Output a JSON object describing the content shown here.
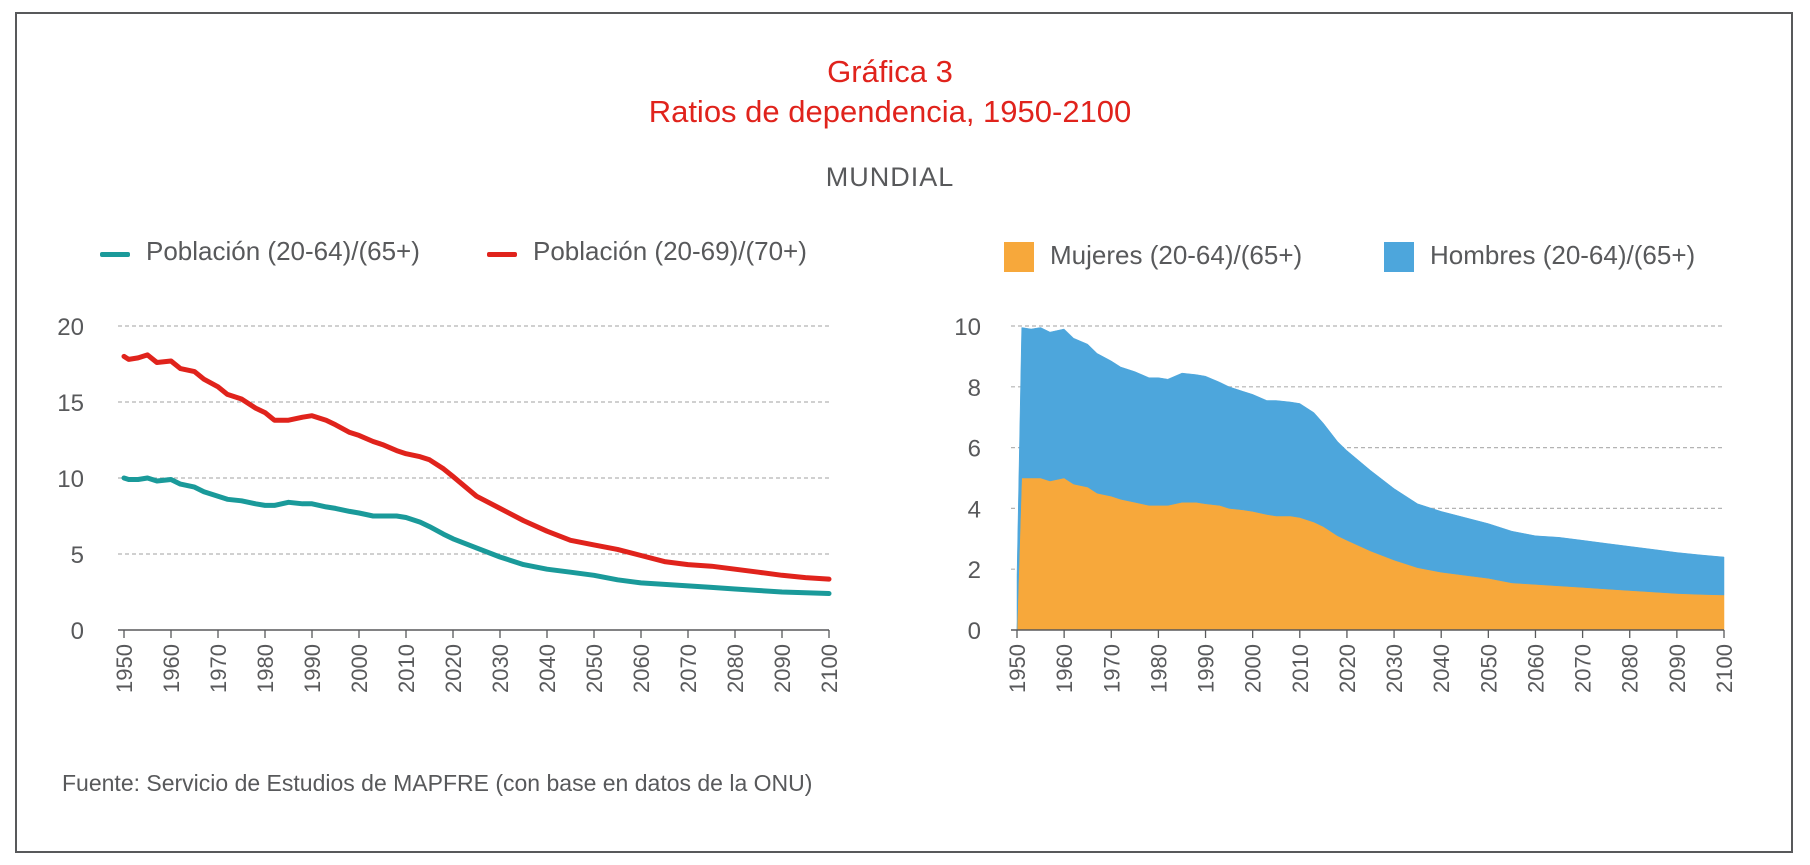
{
  "title_line1": "Gráfica 3",
  "title_line2": "Ratios de dependencia, 1950-2100",
  "subtitle": "MUNDIAL",
  "source": "Fuente: Servicio de Estudios de MAPFRE (con base en datos de la ONU)",
  "colors": {
    "title": "#e0231c",
    "teal": "#1a9a9a",
    "red": "#e0231c",
    "orange": "#f7a83b",
    "blue": "#4da6dc",
    "text": "#58595b",
    "grid": "#b3b3b3"
  },
  "chart_data": [
    {
      "type": "line",
      "title": "",
      "xlabel": "",
      "ylabel": "",
      "xlim": [
        1950,
        2100
      ],
      "ylim": [
        0,
        20
      ],
      "yticks": [
        0,
        5,
        10,
        15,
        20
      ],
      "xticks": [
        1950,
        1960,
        1970,
        1980,
        1990,
        2000,
        2010,
        2020,
        2030,
        2040,
        2050,
        2060,
        2070,
        2080,
        2090,
        2100
      ],
      "grid": true,
      "legend": "top",
      "x": [
        1950,
        1951,
        1953,
        1955,
        1957,
        1960,
        1962,
        1965,
        1967,
        1970,
        1972,
        1975,
        1978,
        1980,
        1982,
        1985,
        1988,
        1990,
        1993,
        1995,
        1998,
        2000,
        2003,
        2005,
        2008,
        2010,
        2013,
        2015,
        2018,
        2020,
        2025,
        2030,
        2035,
        2040,
        2045,
        2050,
        2055,
        2060,
        2065,
        2070,
        2075,
        2080,
        2085,
        2090,
        2095,
        2100
      ],
      "series": [
        {
          "name": "Población (20-64)/(65+)",
          "color": "#1a9a9a",
          "values": [
            10.0,
            9.9,
            9.9,
            10.0,
            9.8,
            9.9,
            9.6,
            9.4,
            9.1,
            8.8,
            8.6,
            8.5,
            8.3,
            8.2,
            8.2,
            8.4,
            8.3,
            8.3,
            8.1,
            8.0,
            7.8,
            7.7,
            7.5,
            7.5,
            7.5,
            7.4,
            7.1,
            6.8,
            6.3,
            6.0,
            5.4,
            4.8,
            4.3,
            4.0,
            3.8,
            3.6,
            3.3,
            3.1,
            3.0,
            2.9,
            2.8,
            2.7,
            2.6,
            2.5,
            2.45,
            2.4
          ]
        },
        {
          "name": "Población (20-69)/(70+)",
          "color": "#e0231c",
          "values": [
            18.0,
            17.8,
            17.9,
            18.1,
            17.6,
            17.7,
            17.2,
            17.0,
            16.5,
            16.0,
            15.5,
            15.2,
            14.6,
            14.3,
            13.8,
            13.8,
            14.0,
            14.1,
            13.8,
            13.5,
            13.0,
            12.8,
            12.4,
            12.2,
            11.8,
            11.6,
            11.4,
            11.2,
            10.6,
            10.1,
            8.8,
            8.0,
            7.2,
            6.5,
            5.9,
            5.6,
            5.3,
            4.9,
            4.5,
            4.3,
            4.2,
            4.0,
            3.8,
            3.6,
            3.45,
            3.35
          ]
        }
      ]
    },
    {
      "type": "area",
      "title": "",
      "xlabel": "",
      "ylabel": "",
      "xlim": [
        1950,
        2100
      ],
      "ylim": [
        0,
        10
      ],
      "yticks": [
        0,
        2,
        4,
        6,
        8,
        10
      ],
      "xticks": [
        1950,
        1960,
        1970,
        1980,
        1990,
        2000,
        2010,
        2020,
        2030,
        2040,
        2050,
        2060,
        2070,
        2080,
        2090,
        2100
      ],
      "grid": true,
      "legend": "top",
      "stacked": true,
      "x": [
        1950,
        1951,
        1953,
        1955,
        1957,
        1960,
        1962,
        1965,
        1967,
        1970,
        1972,
        1975,
        1978,
        1980,
        1982,
        1985,
        1988,
        1990,
        1993,
        1995,
        1998,
        2000,
        2003,
        2005,
        2008,
        2010,
        2013,
        2015,
        2018,
        2020,
        2025,
        2030,
        2035,
        2040,
        2045,
        2050,
        2055,
        2060,
        2065,
        2070,
        2075,
        2080,
        2085,
        2090,
        2095,
        2100
      ],
      "series": [
        {
          "name": "Mujeres (20-64)/(65+)",
          "color": "#f7a83b",
          "values": [
            0.0,
            5.0,
            5.0,
            5.0,
            4.9,
            5.0,
            4.8,
            4.7,
            4.5,
            4.4,
            4.3,
            4.2,
            4.1,
            4.1,
            4.1,
            4.2,
            4.2,
            4.15,
            4.1,
            4.0,
            3.95,
            3.9,
            3.8,
            3.75,
            3.75,
            3.7,
            3.55,
            3.4,
            3.1,
            2.95,
            2.6,
            2.3,
            2.05,
            1.9,
            1.8,
            1.7,
            1.55,
            1.5,
            1.45,
            1.4,
            1.35,
            1.3,
            1.25,
            1.2,
            1.17,
            1.15
          ]
        },
        {
          "name": "Hombres (20-64)/(65+)",
          "color": "#4da6dc",
          "values": [
            1.8,
            4.95,
            4.9,
            4.95,
            4.9,
            4.9,
            4.8,
            4.7,
            4.6,
            4.45,
            4.35,
            4.3,
            4.2,
            4.2,
            4.15,
            4.25,
            4.2,
            4.2,
            4.05,
            4.0,
            3.9,
            3.85,
            3.75,
            3.8,
            3.75,
            3.75,
            3.6,
            3.4,
            3.1,
            2.95,
            2.65,
            2.35,
            2.1,
            2.0,
            1.9,
            1.8,
            1.7,
            1.6,
            1.6,
            1.55,
            1.5,
            1.45,
            1.4,
            1.35,
            1.3,
            1.25
          ]
        }
      ]
    }
  ]
}
